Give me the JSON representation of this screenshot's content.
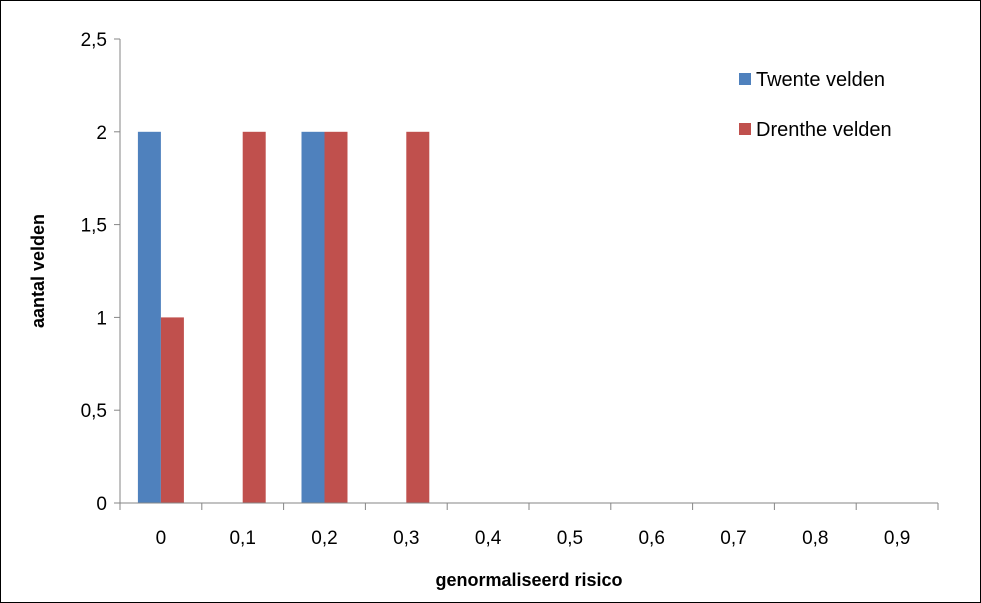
{
  "chart_data": {
    "type": "bar",
    "categories": [
      "0",
      "0,1",
      "0,2",
      "0,3",
      "0,4",
      "0,5",
      "0,6",
      "0,7",
      "0,8",
      "0,9"
    ],
    "series": [
      {
        "name": "Twente velden",
        "color": "#4F81BD",
        "values": [
          2,
          0,
          2,
          0,
          0,
          0,
          0,
          0,
          0,
          0
        ]
      },
      {
        "name": "Drenthe velden",
        "color": "#C0504D",
        "values": [
          1,
          2,
          2,
          2,
          0,
          0,
          0,
          0,
          0,
          0
        ]
      }
    ],
    "xlabel": "genormaliseerd risico",
    "ylabel": "aantal velden",
    "ylim": [
      0,
      2.5
    ],
    "yticks": [
      0,
      0.5,
      1,
      1.5,
      2,
      2.5
    ],
    "ytick_labels": [
      "0",
      "0,5",
      "1",
      "1,5",
      "2",
      "2,5"
    ],
    "grid": false,
    "legend_position": "top-right"
  }
}
